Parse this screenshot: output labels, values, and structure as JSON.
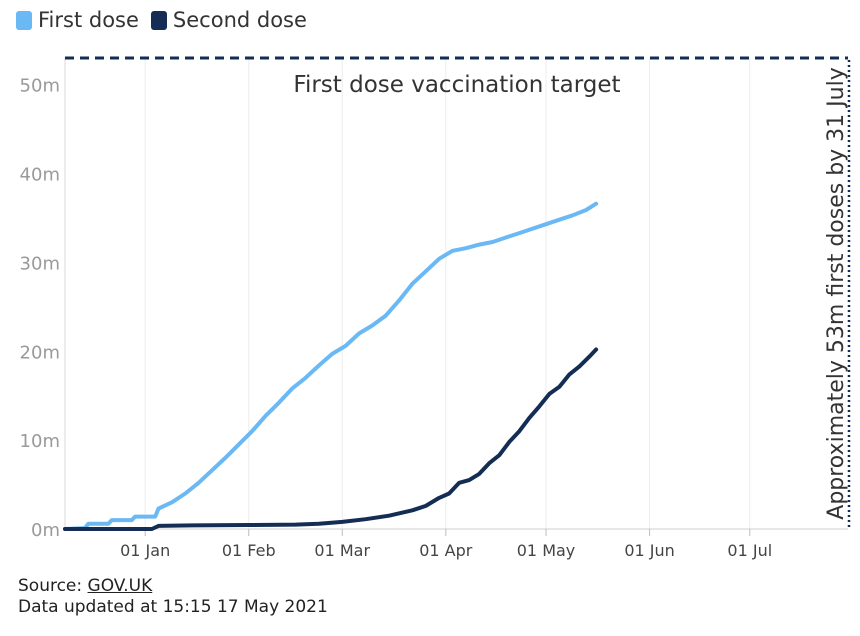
{
  "legend": {
    "first": {
      "label": "First dose",
      "color": "#6ab9f4"
    },
    "second": {
      "label": "Second dose",
      "color": "#142d54"
    }
  },
  "footer": {
    "source_prefix": "Source: ",
    "source_link": "GOV.UK",
    "updated": "Data updated at 15:15 17 May 2021"
  },
  "chart_data": {
    "type": "line",
    "xlabel": "",
    "ylabel": "",
    "xlim": [
      "2020-12-08",
      "2021-07-31"
    ],
    "ylim": [
      0,
      53
    ],
    "y_ticks": [
      {
        "value": 0,
        "label": "0m"
      },
      {
        "value": 10,
        "label": "10m"
      },
      {
        "value": 20,
        "label": "20m"
      },
      {
        "value": 30,
        "label": "30m"
      },
      {
        "value": 40,
        "label": "40m"
      },
      {
        "value": 50,
        "label": "50m"
      }
    ],
    "x_ticks": [
      {
        "date": "2021-01-01",
        "label": "01 Jan"
      },
      {
        "date": "2021-02-01",
        "label": "01 Feb"
      },
      {
        "date": "2021-03-01",
        "label": "01 Mar"
      },
      {
        "date": "2021-04-01",
        "label": "01 Apr"
      },
      {
        "date": "2021-05-01",
        "label": "01 May"
      },
      {
        "date": "2021-06-01",
        "label": "01 Jun"
      },
      {
        "date": "2021-07-01",
        "label": "01 Jul"
      }
    ],
    "grid": "vertical",
    "legend_position": "top-left",
    "series": [
      {
        "name": "First dose",
        "color": "#6ab9f4",
        "points": [
          [
            "2020-12-08",
            0.0
          ],
          [
            "2020-12-14",
            0.1
          ],
          [
            "2020-12-15",
            0.6
          ],
          [
            "2020-12-21",
            0.6
          ],
          [
            "2020-12-22",
            1.0
          ],
          [
            "2020-12-28",
            1.0
          ],
          [
            "2020-12-29",
            1.4
          ],
          [
            "2021-01-04",
            1.4
          ],
          [
            "2021-01-05",
            2.3
          ],
          [
            "2021-01-09",
            3.0
          ],
          [
            "2021-01-13",
            4.0
          ],
          [
            "2021-01-17",
            5.2
          ],
          [
            "2021-01-21",
            6.6
          ],
          [
            "2021-01-25",
            8.0
          ],
          [
            "2021-01-29",
            9.5
          ],
          [
            "2021-02-02",
            11.0
          ],
          [
            "2021-02-06",
            12.7
          ],
          [
            "2021-02-10",
            14.2
          ],
          [
            "2021-02-14",
            15.8
          ],
          [
            "2021-02-18",
            17.0
          ],
          [
            "2021-02-22",
            18.4
          ],
          [
            "2021-02-26",
            19.7
          ],
          [
            "2021-03-02",
            20.6
          ],
          [
            "2021-03-06",
            22.0
          ],
          [
            "2021-03-10",
            22.9
          ],
          [
            "2021-03-14",
            24.0
          ],
          [
            "2021-03-18",
            25.7
          ],
          [
            "2021-03-22",
            27.6
          ],
          [
            "2021-03-26",
            29.0
          ],
          [
            "2021-03-30",
            30.4
          ],
          [
            "2021-04-03",
            31.3
          ],
          [
            "2021-04-07",
            31.6
          ],
          [
            "2021-04-11",
            32.0
          ],
          [
            "2021-04-15",
            32.3
          ],
          [
            "2021-04-19",
            32.8
          ],
          [
            "2021-04-23",
            33.3
          ],
          [
            "2021-04-27",
            33.8
          ],
          [
            "2021-05-01",
            34.3
          ],
          [
            "2021-05-05",
            34.8
          ],
          [
            "2021-05-09",
            35.3
          ],
          [
            "2021-05-13",
            35.9
          ],
          [
            "2021-05-16",
            36.6
          ]
        ]
      },
      {
        "name": "Second dose",
        "color": "#142d54",
        "points": [
          [
            "2020-12-08",
            0.0
          ],
          [
            "2021-01-03",
            0.0
          ],
          [
            "2021-01-05",
            0.35
          ],
          [
            "2021-01-15",
            0.4
          ],
          [
            "2021-02-01",
            0.45
          ],
          [
            "2021-02-15",
            0.5
          ],
          [
            "2021-02-22",
            0.6
          ],
          [
            "2021-03-01",
            0.8
          ],
          [
            "2021-03-08",
            1.1
          ],
          [
            "2021-03-15",
            1.5
          ],
          [
            "2021-03-22",
            2.1
          ],
          [
            "2021-03-26",
            2.6
          ],
          [
            "2021-03-30",
            3.5
          ],
          [
            "2021-04-02",
            4.0
          ],
          [
            "2021-04-05",
            5.2
          ],
          [
            "2021-04-08",
            5.5
          ],
          [
            "2021-04-11",
            6.2
          ],
          [
            "2021-04-14",
            7.4
          ],
          [
            "2021-04-17",
            8.3
          ],
          [
            "2021-04-20",
            9.8
          ],
          [
            "2021-04-23",
            11.0
          ],
          [
            "2021-04-26",
            12.5
          ],
          [
            "2021-04-29",
            13.8
          ],
          [
            "2021-05-02",
            15.2
          ],
          [
            "2021-05-05",
            16.0
          ],
          [
            "2021-05-08",
            17.4
          ],
          [
            "2021-05-11",
            18.3
          ],
          [
            "2021-05-14",
            19.4
          ],
          [
            "2021-05-16",
            20.2
          ]
        ]
      }
    ],
    "annotations": {
      "target_value": 53,
      "target_line_label": "First dose vaccination target",
      "target_date": "2021-07-31",
      "vertical_label": "Approximately 53m first doses by 31 July"
    }
  }
}
